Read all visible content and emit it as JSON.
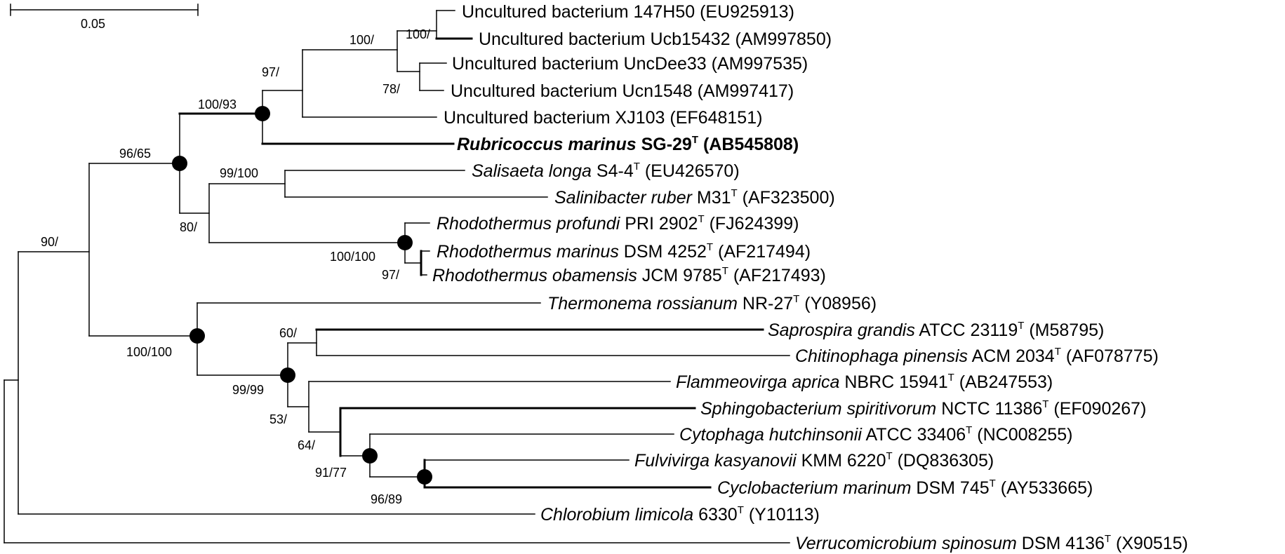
{
  "scale_bar": {
    "label": "0.05"
  },
  "leaves": [
    {
      "id": "l0",
      "name": "Uncultured bacterium 147H50",
      "italic": false,
      "strain": "",
      "type_strain": false,
      "accession": "(EU925913)",
      "bold": false
    },
    {
      "id": "l1",
      "name": "Uncultured bacterium Ucb15432",
      "italic": false,
      "strain": "",
      "type_strain": false,
      "accession": "(AM997850)",
      "bold": false
    },
    {
      "id": "l2",
      "name": "Uncultured bacterium UncDee33",
      "italic": false,
      "strain": "",
      "type_strain": false,
      "accession": "(AM997535)",
      "bold": false
    },
    {
      "id": "l3",
      "name": "Uncultured bacterium Ucn1548",
      "italic": false,
      "strain": "",
      "type_strain": false,
      "accession": "(AM997417)",
      "bold": false
    },
    {
      "id": "l4",
      "name": "Uncultured bacterium XJ103",
      "italic": false,
      "strain": "",
      "type_strain": false,
      "accession": "(EF648151)",
      "bold": false
    },
    {
      "id": "l5",
      "name": "Rubricoccus marinus",
      "italic": true,
      "strain": "SG-29",
      "type_strain": true,
      "accession": "(AB545808)",
      "bold": true
    },
    {
      "id": "l6",
      "name": "Salisaeta longa",
      "italic": true,
      "strain": "S4-4",
      "type_strain": true,
      "accession": "(EU426570)",
      "bold": false
    },
    {
      "id": "l7",
      "name": "Salinibacter ruber",
      "italic": true,
      "strain": "M31",
      "type_strain": true,
      "accession": "(AF323500)",
      "bold": false
    },
    {
      "id": "l8",
      "name": "Rhodothermus profundi",
      "italic": true,
      "strain": "PRI 2902",
      "type_strain": true,
      "accession": "(FJ624399)",
      "bold": false
    },
    {
      "id": "l9",
      "name": "Rhodothermus marinus",
      "italic": true,
      "strain": "DSM 4252",
      "type_strain": true,
      "accession": "(AF217494)",
      "bold": false
    },
    {
      "id": "l10",
      "name": "Rhodothermus obamensis",
      "italic": true,
      "strain": "JCM 9785",
      "type_strain": true,
      "accession": "(AF217493)",
      "bold": false
    },
    {
      "id": "l11",
      "name": "Thermonema rossianum",
      "italic": true,
      "strain": "NR-27",
      "type_strain": true,
      "accession": "(Y08956)",
      "bold": false
    },
    {
      "id": "l12",
      "name": "Saprospira grandis",
      "italic": true,
      "strain": "ATCC 23119",
      "type_strain": true,
      "accession": "(M58795)",
      "bold": false
    },
    {
      "id": "l13",
      "name": "Chitinophaga pinensis",
      "italic": true,
      "strain": "ACM 2034",
      "type_strain": true,
      "accession": "(AF078775)",
      "bold": false
    },
    {
      "id": "l14",
      "name": "Flammeovirga aprica",
      "italic": true,
      "strain": "NBRC 15941",
      "type_strain": true,
      "accession": "(AB247553)",
      "bold": false
    },
    {
      "id": "l15",
      "name": "Sphingobacterium spiritivorum",
      "italic": true,
      "strain": "NCTC 11386",
      "type_strain": true,
      "accession": "(EF090267)",
      "bold": false
    },
    {
      "id": "l16",
      "name": "Cytophaga hutchinsonii",
      "italic": true,
      "strain": "ATCC 33406",
      "type_strain": true,
      "accession": "(NC008255)",
      "bold": false
    },
    {
      "id": "l17",
      "name": "Fulvivirga kasyanovii",
      "italic": true,
      "strain": "KMM 6220",
      "type_strain": true,
      "accession": "(DQ836305)",
      "bold": false
    },
    {
      "id": "l18",
      "name": "Cyclobacterium marinum",
      "italic": true,
      "strain": "DSM 745",
      "type_strain": true,
      "accession": "(AY533665)",
      "bold": false
    },
    {
      "id": "l19",
      "name": "Chlorobium limicola",
      "italic": true,
      "strain": "6330",
      "type_strain": true,
      "accession": "(Y10113)",
      "bold": false
    },
    {
      "id": "l20",
      "name": "Verrucomicrobium spinosum",
      "italic": true,
      "strain": "DSM 4136",
      "type_strain": true,
      "accession": "(X90515)",
      "bold": false
    }
  ],
  "type_strain_mark": "T",
  "bootstrap": [
    {
      "id": "b0",
      "text": "100/"
    },
    {
      "id": "b1",
      "text": "100/"
    },
    {
      "id": "b2",
      "text": "78/"
    },
    {
      "id": "b3",
      "text": "97/"
    },
    {
      "id": "b4",
      "text": "100/93"
    },
    {
      "id": "b5",
      "text": "96/65"
    },
    {
      "id": "b6",
      "text": "99/100"
    },
    {
      "id": "b7",
      "text": "80/"
    },
    {
      "id": "b8",
      "text": "100/100"
    },
    {
      "id": "b9",
      "text": "97/"
    },
    {
      "id": "b10",
      "text": "90/"
    },
    {
      "id": "b11",
      "text": "100/100"
    },
    {
      "id": "b12",
      "text": "60/"
    },
    {
      "id": "b13",
      "text": "99/99"
    },
    {
      "id": "b14",
      "text": "53/"
    },
    {
      "id": "b15",
      "text": "64/"
    },
    {
      "id": "b16",
      "text": "91/77"
    },
    {
      "id": "b17",
      "text": "96/89"
    }
  ]
}
